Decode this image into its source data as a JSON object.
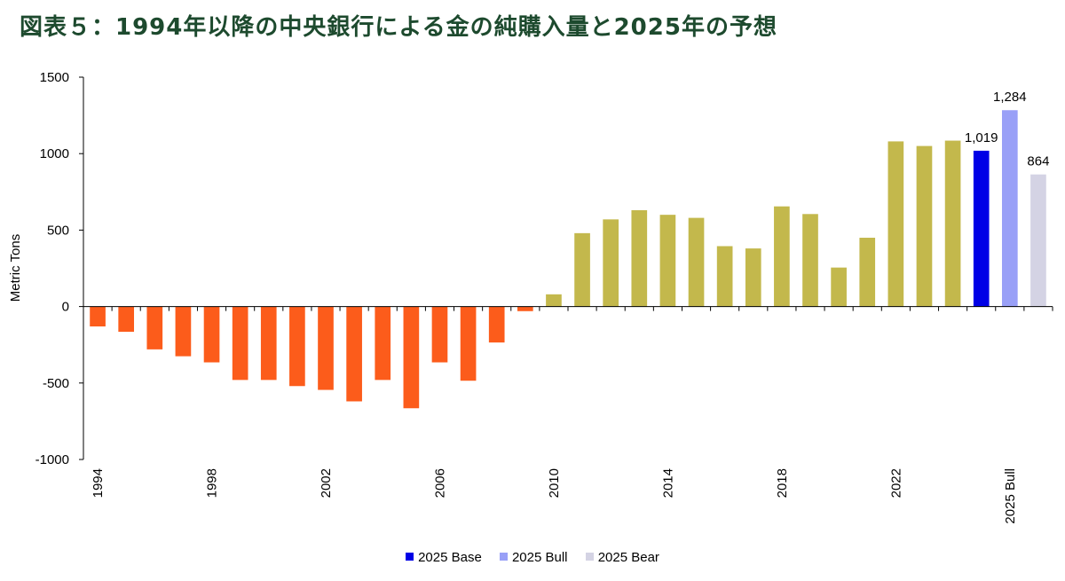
{
  "chart_data": {
    "type": "bar",
    "title": "図表５：1994年以降の中央銀行による金の純購入量と2025年の予想",
    "ylabel": "Metric Tons",
    "ylim": [
      -1000,
      1500
    ],
    "yticks": [
      "1500",
      "1000",
      "500",
      "0",
      "-500",
      "-1000"
    ],
    "grid": false,
    "categories": [
      "1994",
      "1995",
      "1996",
      "1997",
      "1998",
      "1999",
      "2000",
      "2001",
      "2002",
      "2003",
      "2004",
      "2005",
      "2006",
      "2007",
      "2008",
      "2009",
      "2010",
      "2011",
      "2012",
      "2013",
      "2014",
      "2015",
      "2016",
      "2017",
      "2018",
      "2019",
      "2020",
      "2021",
      "2022",
      "2023",
      "2024",
      "2025 Base",
      "2025 Bull",
      "2025 Bear"
    ],
    "xtick_labels": [
      "1994",
      "1998",
      "2002",
      "2006",
      "2010",
      "2014",
      "2018",
      "2022",
      "2025 Bull"
    ],
    "values": [
      -130,
      -165,
      -280,
      -325,
      -365,
      -480,
      -480,
      -520,
      -545,
      -620,
      -480,
      -665,
      -365,
      -485,
      -235,
      -30,
      80,
      480,
      570,
      630,
      600,
      580,
      395,
      380,
      655,
      605,
      255,
      450,
      1080,
      1050,
      1085,
      1019,
      1284,
      864
    ],
    "colors": {
      "negative": "#fc5c1b",
      "historical_positive": "#c3b84c",
      "base": "#0000e6",
      "bull": "#99a0f7",
      "bear": "#d4d3e4"
    },
    "data_labels": {
      "2025 Base": "1,019",
      "2025 Bull": "1,284",
      "2025 Bear": "864"
    },
    "legend": {
      "placement": "bottom-center",
      "items": [
        {
          "label": "2025 Base",
          "color": "#0000e6"
        },
        {
          "label": "2025 Bull",
          "color": "#99a0f7"
        },
        {
          "label": "2025 Bear",
          "color": "#d4d3e4"
        }
      ]
    }
  }
}
